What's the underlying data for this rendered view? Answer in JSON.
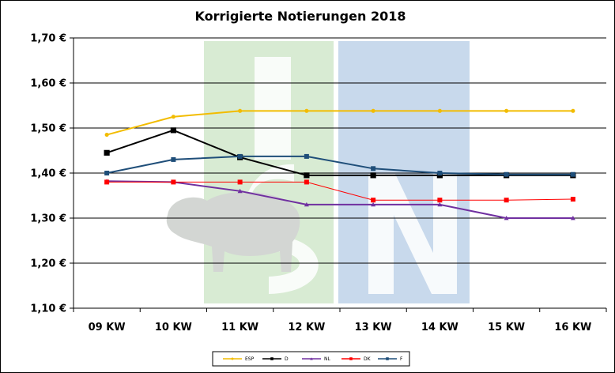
{
  "chart_data": {
    "type": "line",
    "title": "Korrigierte Notierungen 2018",
    "categories": [
      "09 KW",
      "10 KW",
      "11 KW",
      "12 KW",
      "13 KW",
      "14 KW",
      "15 KW",
      "16 KW"
    ],
    "yticks": [
      "1,10 €",
      "1,20 €",
      "1,30 €",
      "1,40 €",
      "1,50 €",
      "1,60 €",
      "1,70 €"
    ],
    "ylim": [
      1.1,
      1.7
    ],
    "grid": true,
    "legend_position": "bottom",
    "series": [
      {
        "name": "ESP",
        "color": "#f2bc00",
        "marker": "circle",
        "values": [
          1.485,
          1.525,
          1.538,
          1.538,
          1.538,
          1.538,
          1.538,
          1.538
        ]
      },
      {
        "name": "D",
        "color": "#000000",
        "marker": "square",
        "values": [
          1.445,
          1.495,
          1.435,
          1.395,
          1.395,
          1.395,
          1.395,
          1.395
        ]
      },
      {
        "name": "NL",
        "color": "#7030a0",
        "marker": "triangle",
        "values": [
          1.382,
          1.38,
          1.36,
          1.33,
          1.33,
          1.33,
          1.3,
          1.3
        ]
      },
      {
        "name": "DK",
        "color": "#ff0000",
        "marker": "square",
        "values": [
          1.38,
          1.38,
          1.38,
          1.38,
          1.34,
          1.34,
          1.34,
          1.342
        ]
      },
      {
        "name": "F",
        "color": "#1f4e79",
        "marker": "square",
        "values": [
          1.4,
          1.43,
          1.437,
          1.437,
          1.41,
          1.4,
          1.397,
          1.397
        ]
      }
    ]
  },
  "watermark": {
    "green": "#d8ebd3",
    "blue": "#c8d9ec",
    "pig": "#d3d6d3"
  }
}
